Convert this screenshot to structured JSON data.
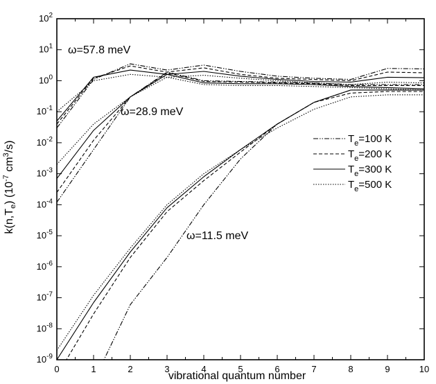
{
  "chart_data": {
    "type": "line",
    "xlabel": "vibrational quantum number",
    "ylabel": "k(n,T_e) (10^-7 cm^3/s)",
    "xlim": [
      0,
      10
    ],
    "ylim_log10": [
      -9,
      2
    ],
    "yscale": "log",
    "grid": false,
    "legend_position": "right-middle",
    "x": [
      0,
      1,
      2,
      3,
      4,
      5,
      6,
      7,
      8,
      9,
      10
    ],
    "x_tick_labels": [
      "0",
      "1",
      "2",
      "3",
      "4",
      "5",
      "6",
      "7",
      "8",
      "9",
      "10"
    ],
    "y_tick_labels": [
      {
        "base": "10",
        "exp": "2"
      },
      {
        "base": "10",
        "exp": "1"
      },
      {
        "base": "10",
        "exp": "0"
      },
      {
        "base": "10",
        "exp": "-1"
      },
      {
        "base": "10",
        "exp": "-2"
      },
      {
        "base": "10",
        "exp": "-3"
      },
      {
        "base": "10",
        "exp": "-4"
      },
      {
        "base": "10",
        "exp": "-5"
      },
      {
        "base": "10",
        "exp": "-6"
      },
      {
        "base": "10",
        "exp": "-7"
      },
      {
        "base": "10",
        "exp": "-8"
      },
      {
        "base": "10",
        "exp": "-9"
      }
    ],
    "legend": [
      {
        "key": "T100",
        "label_main": "T",
        "label_sub": "e",
        "label_rest": "=100 K",
        "dash": "dashdotdot"
      },
      {
        "key": "T200",
        "label_main": "T",
        "label_sub": "e",
        "label_rest": "=200 K",
        "dash": "dashed"
      },
      {
        "key": "T300",
        "label_main": "T",
        "label_sub": "e",
        "label_rest": "=300 K",
        "dash": "solid"
      },
      {
        "key": "T500",
        "label_main": "T",
        "label_sub": "e",
        "label_rest": "=500 K",
        "dash": "dotted"
      }
    ],
    "annotations": [
      {
        "key": "w578",
        "text": "ω=57.8 meV"
      },
      {
        "key": "w289",
        "text": "ω=28.9 meV"
      },
      {
        "key": "w115",
        "text": "ω=11.5  meV"
      }
    ],
    "groups": [
      {
        "name": "ω=57.8 meV",
        "series": [
          {
            "temp": "T100",
            "y": [
              0.03,
              1.1,
              3.5,
              2.2,
              3.2,
              2.0,
              1.4,
              1.2,
              1.1,
              2.5,
              2.4
            ]
          },
          {
            "temp": "T200",
            "y": [
              0.04,
              1.2,
              3.0,
              1.9,
              2.6,
              1.6,
              1.2,
              1.1,
              1.0,
              1.9,
              1.8
            ]
          },
          {
            "temp": "T300",
            "y": [
              0.05,
              1.3,
              2.2,
              1.6,
              2.0,
              1.4,
              1.1,
              0.95,
              0.9,
              1.3,
              1.25
            ]
          },
          {
            "temp": "T500",
            "y": [
              0.1,
              1.0,
              1.6,
              1.3,
              1.5,
              1.2,
              1.0,
              0.85,
              0.75,
              0.9,
              0.85
            ]
          }
        ]
      },
      {
        "name": "ω=28.9 meV",
        "series": [
          {
            "temp": "T100",
            "y": [
              0.00012,
              0.006,
              0.3,
              1.9,
              1.0,
              0.95,
              0.9,
              0.85,
              0.75,
              0.75,
              0.75
            ]
          },
          {
            "temp": "T200",
            "y": [
              0.00025,
              0.012,
              0.3,
              1.8,
              0.95,
              0.9,
              0.85,
              0.8,
              0.7,
              0.7,
              0.7
            ]
          },
          {
            "temp": "T300",
            "y": [
              0.0007,
              0.025,
              0.3,
              1.6,
              0.85,
              0.8,
              0.8,
              0.75,
              0.65,
              0.6,
              0.55
            ]
          },
          {
            "temp": "T500",
            "y": [
              0.002,
              0.04,
              0.3,
              1.3,
              0.75,
              0.7,
              0.7,
              0.65,
              0.6,
              0.55,
              0.5
            ]
          }
        ]
      },
      {
        "name": "ω=11.5 meV",
        "series": [
          {
            "temp": "T100",
            "y": [
              1e-10,
              2e-10,
              6e-08,
              2e-06,
              0.0001,
              0.003,
              0.04,
              0.2,
              0.5,
              0.5,
              0.5
            ]
          },
          {
            "temp": "T200",
            "y": [
              3e-10,
              3e-08,
              2e-06,
              6e-05,
              0.0006,
              0.005,
              0.04,
              0.2,
              0.4,
              0.45,
              0.45
            ]
          },
          {
            "temp": "T300",
            "y": [
              1e-09,
              7e-08,
              3e-06,
              8e-05,
              0.0008,
              0.006,
              0.04,
              0.2,
              0.5,
              0.5,
              0.5
            ]
          },
          {
            "temp": "T500",
            "y": [
              2e-09,
              1.2e-07,
              4e-06,
              0.0001,
              0.001,
              0.006,
              0.03,
              0.12,
              0.3,
              0.35,
              0.35
            ]
          }
        ]
      }
    ]
  }
}
